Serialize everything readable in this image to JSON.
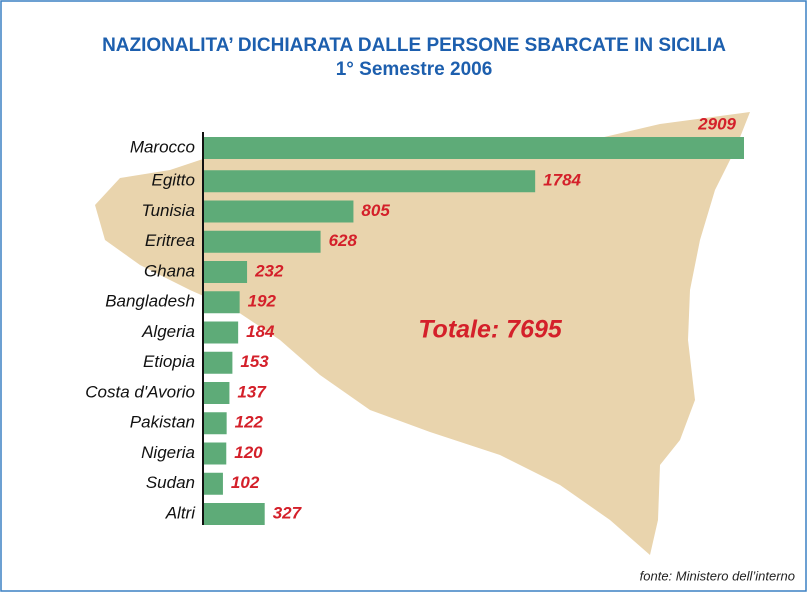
{
  "chart_data": {
    "type": "bar",
    "orientation": "horizontal",
    "title": "NAZIONALITA’ DICHIARATA DALLE PERSONE SBARCATE IN SICILIA",
    "subtitle": "1° Semestre 2006",
    "categories": [
      "Marocco",
      "Egitto",
      "Tunisia",
      "Eritrea",
      "Ghana",
      "Bangladesh",
      "Algeria",
      "Etiopia",
      "Costa d'Avorio",
      "Pakistan",
      "Nigeria",
      "Sudan",
      "Altri"
    ],
    "values": [
      2909,
      1784,
      805,
      628,
      232,
      192,
      184,
      153,
      137,
      122,
      120,
      102,
      327
    ],
    "color": "#5eab78",
    "annotation": "Totale: 7695",
    "source": "fonte: Ministero dell’interno"
  }
}
